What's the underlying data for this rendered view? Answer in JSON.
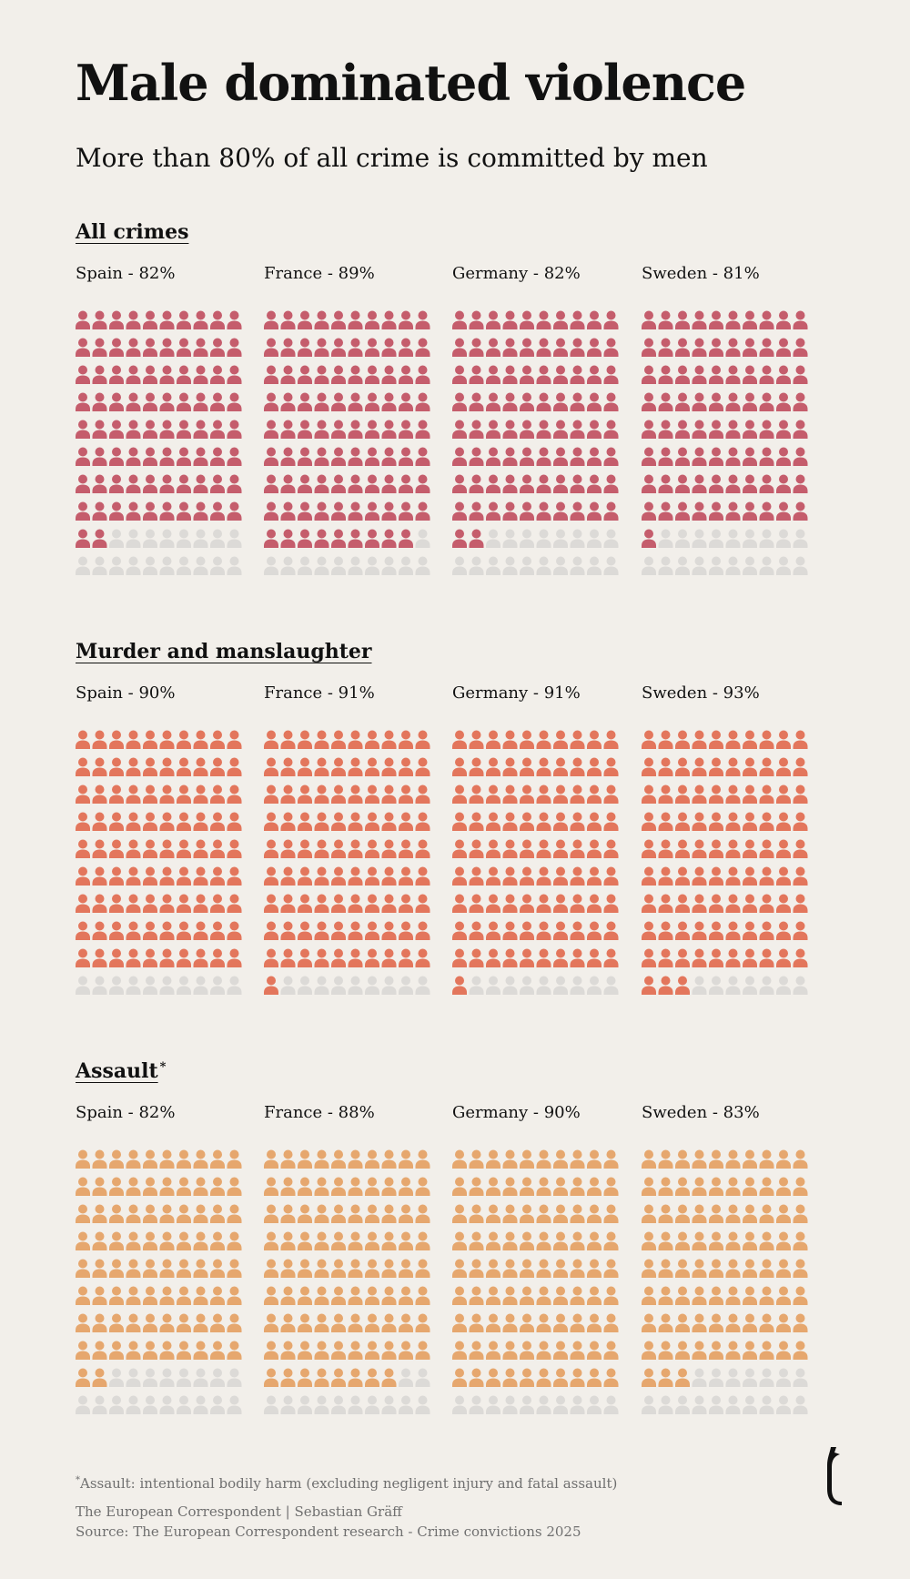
{
  "title": "Male dominated violence",
  "subtitle": "More than 80% of all crime is committed by men",
  "colors": {
    "background": "#f2efea",
    "empty": "#dcdad7",
    "all_crimes": "#c55d6c",
    "murder": "#e3765c",
    "assault": "#e6a76e"
  },
  "chart_data": [
    {
      "type": "waffle",
      "title": "All crimes",
      "grid": {
        "rows": 10,
        "cols": 10,
        "units": 100
      },
      "unit": "%",
      "color": "#c55d6c",
      "panels": [
        {
          "country": "Spain",
          "value": 82,
          "label": "Spain - 82%"
        },
        {
          "country": "France",
          "value": 89,
          "label": "France - 89%"
        },
        {
          "country": "Germany",
          "value": 82,
          "label": "Germany - 82%"
        },
        {
          "country": "Sweden",
          "value": 81,
          "label": "Sweden - 81%"
        }
      ]
    },
    {
      "type": "waffle",
      "title": "Murder and manslaughter",
      "grid": {
        "rows": 10,
        "cols": 10,
        "units": 100
      },
      "unit": "%",
      "color": "#e3765c",
      "panels": [
        {
          "country": "Spain",
          "value": 90,
          "label": "Spain - 90%"
        },
        {
          "country": "France",
          "value": 91,
          "label": "France - 91%"
        },
        {
          "country": "Germany",
          "value": 91,
          "label": "Germany - 91%"
        },
        {
          "country": "Sweden",
          "value": 93,
          "label": "Sweden - 93%"
        }
      ]
    },
    {
      "type": "waffle",
      "title": "Assault",
      "title_marker": "*",
      "grid": {
        "rows": 10,
        "cols": 10,
        "units": 100
      },
      "unit": "%",
      "color": "#e6a76e",
      "panels": [
        {
          "country": "Spain",
          "value": 82,
          "label": "Spain - 82%"
        },
        {
          "country": "France",
          "value": 88,
          "label": "France - 88%"
        },
        {
          "country": "Germany",
          "value": 90,
          "label": "Germany - 90%"
        },
        {
          "country": "Sweden",
          "value": 83,
          "label": "Sweden - 83%"
        }
      ]
    }
  ],
  "footnote": {
    "marker": "*",
    "text": "Assault: intentional bodily harm (excluding negligent injury and fatal assault)"
  },
  "credit": "The European Correspondent | Sebastian Gräff",
  "source": "Source: The European Correspondent research - Crime convictions 2025",
  "logo_icon": "european-correspondent-logo-icon"
}
